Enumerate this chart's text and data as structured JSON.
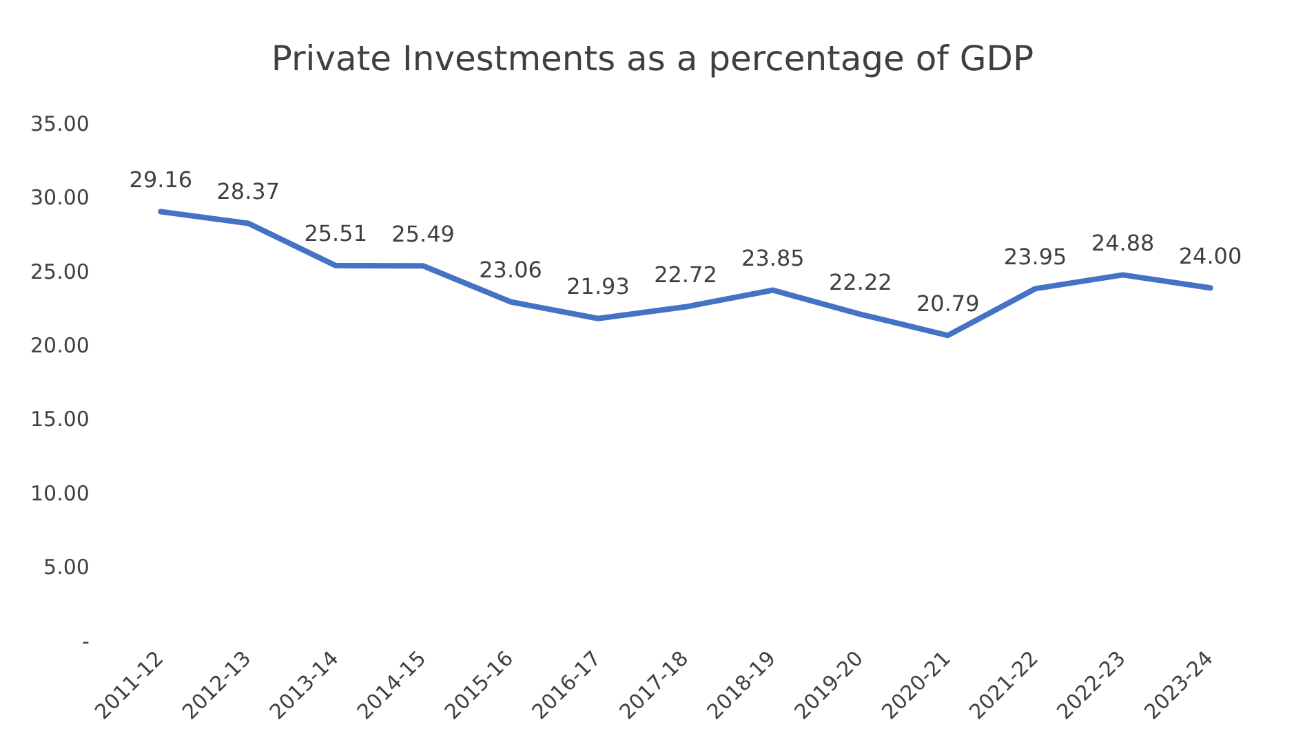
{
  "chart_data": {
    "type": "line",
    "title": "Private Investments as a percentage of GDP",
    "categories": [
      "2011-12",
      "2012-13",
      "2013-14",
      "2014-15",
      "2015-16",
      "2016-17",
      "2017-18",
      "2018-19",
      "2019-20",
      "2020-21",
      "2021-22",
      "2022-23",
      "2023-24"
    ],
    "series": [
      {
        "color": "#4472c4",
        "values": [
          29.16,
          28.37,
          25.51,
          25.49,
          23.06,
          21.93,
          22.72,
          23.85,
          22.22,
          20.79,
          23.95,
          24.88,
          24.0
        ],
        "value_labels": [
          "29.16",
          "28.37",
          "25.51",
          "25.49",
          "23.06",
          "21.93",
          "22.72",
          "23.85",
          "22.22",
          "20.79",
          "23.95",
          "24.88",
          "24.00"
        ]
      }
    ],
    "ylim": [
      0,
      35
    ],
    "yticks": [
      {
        "value": 0,
        "label": "-"
      },
      {
        "value": 5,
        "label": "5.00"
      },
      {
        "value": 10,
        "label": "10.00"
      },
      {
        "value": 15,
        "label": "15.00"
      },
      {
        "value": 20,
        "label": "20.00"
      },
      {
        "value": 25,
        "label": "25.00"
      },
      {
        "value": 30,
        "label": "30.00"
      },
      {
        "value": 35,
        "label": "35.00"
      }
    ],
    "grid": false,
    "legend": false,
    "marker": "none",
    "line_style": "solid"
  }
}
